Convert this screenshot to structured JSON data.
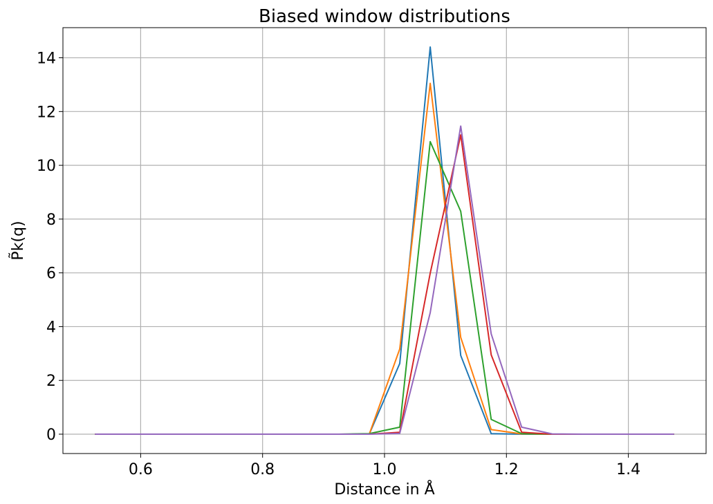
{
  "chart_data": {
    "type": "line",
    "title": "Biased window distributions",
    "xlabel": "Distance in Å",
    "ylabel": "P̃k(q)",
    "xlim": [
      0.4725,
      1.5275
    ],
    "ylim": [
      -0.72,
      15.12
    ],
    "xticks": [
      0.6,
      0.8,
      1.0,
      1.2,
      1.4
    ],
    "xtick_labels": [
      "0.6",
      "0.8",
      "1.0",
      "1.2",
      "1.4"
    ],
    "yticks": [
      0,
      2,
      4,
      6,
      8,
      10,
      12,
      14
    ],
    "ytick_labels": [
      "0",
      "2",
      "4",
      "6",
      "8",
      "10",
      "12",
      "14"
    ],
    "grid": true,
    "legend": "none",
    "x": [
      0.525,
      0.575,
      0.625,
      0.675,
      0.725,
      0.775,
      0.825,
      0.875,
      0.925,
      0.975,
      1.025,
      1.075,
      1.125,
      1.175,
      1.225,
      1.275,
      1.325,
      1.375,
      1.425,
      1.475
    ],
    "series": [
      {
        "color": "#1f77b4",
        "values": [
          0,
          0,
          0,
          0,
          0,
          0,
          0,
          0,
          0,
          0,
          2.63,
          14.4,
          2.93,
          0.02,
          0,
          0,
          0,
          0,
          0,
          0
        ]
      },
      {
        "color": "#ff7f0e",
        "values": [
          0,
          0,
          0,
          0,
          0,
          0,
          0,
          0,
          0,
          0,
          3.17,
          13.05,
          3.6,
          0.17,
          0.01,
          0,
          0,
          0,
          0,
          0
        ]
      },
      {
        "color": "#2ca02c",
        "values": [
          0,
          0,
          0,
          0,
          0,
          0,
          0,
          0,
          0,
          0.02,
          0.26,
          10.88,
          8.29,
          0.55,
          0.02,
          0,
          0,
          0,
          0,
          0
        ]
      },
      {
        "color": "#d62728",
        "values": [
          0,
          0,
          0,
          0,
          0,
          0,
          0,
          0,
          0,
          0,
          0.07,
          5.99,
          11.13,
          2.95,
          0.07,
          0,
          0,
          0,
          0,
          0
        ]
      },
      {
        "color": "#9467bd",
        "values": [
          0,
          0,
          0,
          0,
          0,
          0,
          0,
          0,
          0,
          0,
          0.03,
          4.52,
          11.46,
          3.73,
          0.26,
          0.01,
          0,
          0,
          0,
          0
        ]
      }
    ]
  }
}
